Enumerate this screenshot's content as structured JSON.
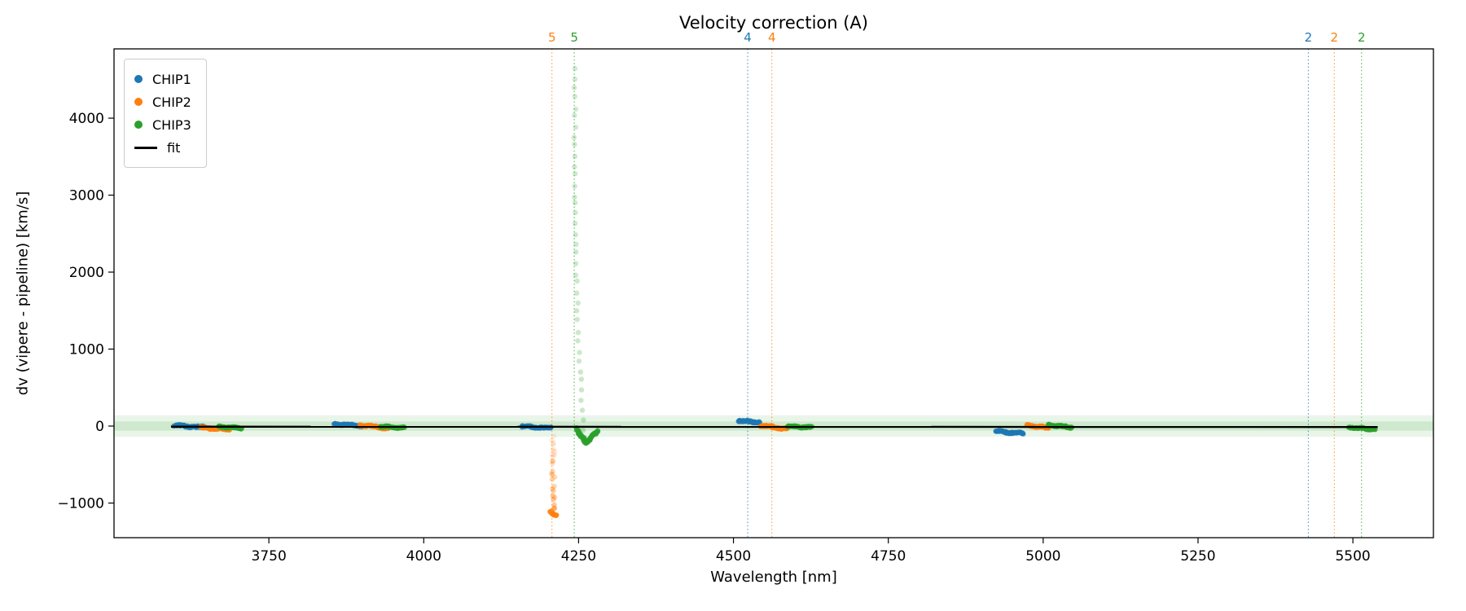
{
  "chart_data": {
    "type": "scatter",
    "title": "Velocity correction (A)",
    "xlabel": "Wavelength [nm]",
    "ylabel": "dv (vipere - pipeline) [km/s]",
    "xlim": [
      3500,
      5630
    ],
    "ylim": [
      -1450,
      4900
    ],
    "xticks": [
      3750,
      4000,
      4250,
      4500,
      4750,
      5000,
      5250,
      5500
    ],
    "yticks": [
      -1000,
      0,
      1000,
      2000,
      3000,
      4000
    ],
    "grid": false,
    "legend_position": "upper left",
    "colors": {
      "CHIP1": "#1f77b4",
      "CHIP2": "#ff7f0e",
      "CHIP3": "#2ca02c",
      "fit": "#000000",
      "band": "#2ca02c"
    },
    "legend": [
      {
        "key": "CHIP1",
        "label": "CHIP1",
        "type": "dot"
      },
      {
        "key": "CHIP2",
        "label": "CHIP2",
        "type": "dot"
      },
      {
        "key": "CHIP3",
        "label": "CHIP3",
        "type": "dot"
      },
      {
        "key": "fit",
        "label": "fit",
        "type": "line"
      }
    ],
    "fit_line": {
      "x": [
        3592,
        5540
      ],
      "y": [
        -8,
        -12
      ]
    },
    "bands": [
      {
        "y_min": -140,
        "y_max": 140,
        "alpha": 0.1
      },
      {
        "y_min": -60,
        "y_max": 60,
        "alpha": 0.14
      }
    ],
    "vlines": [
      {
        "x": 4207,
        "chip": "CHIP2",
        "label": "5"
      },
      {
        "x": 4243,
        "chip": "CHIP3",
        "label": "5"
      },
      {
        "x": 4523,
        "chip": "CHIP1",
        "label": "4"
      },
      {
        "x": 4562,
        "chip": "CHIP2",
        "label": "4"
      },
      {
        "x": 5428,
        "chip": "CHIP1",
        "label": "2"
      },
      {
        "x": 5470,
        "chip": "CHIP2",
        "label": "2"
      },
      {
        "x": 5514,
        "chip": "CHIP3",
        "label": "2"
      }
    ],
    "clusters": [
      {
        "chip": "CHIP1",
        "x_start": 3598,
        "x_end": 3646,
        "y_start": 8,
        "y_end": -18,
        "n": 55,
        "jitter": 18
      },
      {
        "chip": "CHIP2",
        "x_start": 3640,
        "x_end": 3686,
        "y_start": -22,
        "y_end": -45,
        "n": 55,
        "jitter": 18
      },
      {
        "chip": "CHIP3",
        "x_start": 3668,
        "x_end": 3706,
        "y_start": -8,
        "y_end": -28,
        "n": 45,
        "jitter": 14
      },
      {
        "chip": "CHIP1",
        "x_start": 3856,
        "x_end": 3902,
        "y_start": 28,
        "y_end": 2,
        "n": 55,
        "jitter": 16
      },
      {
        "chip": "CHIP2",
        "x_start": 3898,
        "x_end": 3942,
        "y_start": 12,
        "y_end": -28,
        "n": 55,
        "jitter": 18
      },
      {
        "chip": "CHIP3",
        "x_start": 3930,
        "x_end": 3968,
        "y_start": -6,
        "y_end": -22,
        "n": 45,
        "jitter": 14
      },
      {
        "chip": "CHIP1",
        "x_start": 4158,
        "x_end": 4205,
        "y_start": -4,
        "y_end": -26,
        "n": 55,
        "jitter": 16
      },
      {
        "chip": "CHIP2",
        "x_start": 4205,
        "x_end": 4214,
        "y_start": -1120,
        "y_end": -1168,
        "n": 10,
        "jitter": 25
      },
      {
        "chip": "CHIP3",
        "x_start": 4247,
        "x_end": 4262,
        "y_start": -40,
        "y_end": -215,
        "n": 30,
        "jitter": 20
      },
      {
        "chip": "CHIP3",
        "x_start": 4262,
        "x_end": 4281,
        "y_start": -215,
        "y_end": -60,
        "n": 28,
        "jitter": 20
      },
      {
        "chip": "CHIP1",
        "x_start": 4508,
        "x_end": 4541,
        "y_start": 72,
        "y_end": 48,
        "n": 45,
        "jitter": 16
      },
      {
        "chip": "CHIP2",
        "x_start": 4544,
        "x_end": 4586,
        "y_start": 8,
        "y_end": -38,
        "n": 60,
        "jitter": 18
      },
      {
        "chip": "CHIP3",
        "x_start": 4588,
        "x_end": 4626,
        "y_start": -4,
        "y_end": -18,
        "n": 50,
        "jitter": 14
      },
      {
        "chip": "CHIP1",
        "x_start": 4924,
        "x_end": 4968,
        "y_start": -68,
        "y_end": -96,
        "n": 55,
        "jitter": 16
      },
      {
        "chip": "CHIP2",
        "x_start": 4974,
        "x_end": 5009,
        "y_start": 8,
        "y_end": -22,
        "n": 50,
        "jitter": 16
      },
      {
        "chip": "CHIP3",
        "x_start": 5008,
        "x_end": 5045,
        "y_start": 14,
        "y_end": -16,
        "n": 50,
        "jitter": 16
      },
      {
        "chip": "CHIP3",
        "x_start": 5494,
        "x_end": 5535,
        "y_start": -18,
        "y_end": -42,
        "n": 50,
        "jitter": 14
      }
    ],
    "streaks": [
      {
        "chip": "CHIP2",
        "x_start": 4209,
        "x_end": 4209,
        "x_pow": 1,
        "y_start": -120,
        "y_end": -1120,
        "n": 26,
        "jitter_x": 2.5,
        "jitter_y": 35,
        "alpha_start": 0.12,
        "alpha_end": 0.45
      },
      {
        "chip": "CHIP3",
        "x_start": 4244,
        "x_end": 4258,
        "x_pow": 3,
        "y_start": 4640,
        "y_end": -30,
        "n": 38,
        "jitter_x": 1.5,
        "jitter_y": 30,
        "alpha_start": 0.22,
        "alpha_end": 0.25
      }
    ]
  }
}
